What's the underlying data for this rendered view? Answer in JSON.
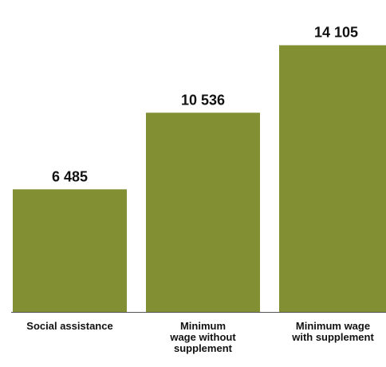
{
  "chart_data": {
    "type": "bar",
    "categories": [
      [
        "Social assistance"
      ],
      [
        "Minimum",
        "wage without",
        "supplement"
      ],
      [
        "Minimum wage",
        "with supplement"
      ]
    ],
    "values": [
      6485,
      10536,
      14105
    ],
    "value_labels": [
      "6 485",
      "10 536",
      "14 105"
    ],
    "title": "",
    "xlabel": "",
    "ylabel": "",
    "ylim": [
      0,
      15400
    ],
    "grid": false,
    "legend": "none",
    "colors": {
      "bar": "#838F33",
      "axis": "#555555",
      "text": "#111111"
    }
  }
}
